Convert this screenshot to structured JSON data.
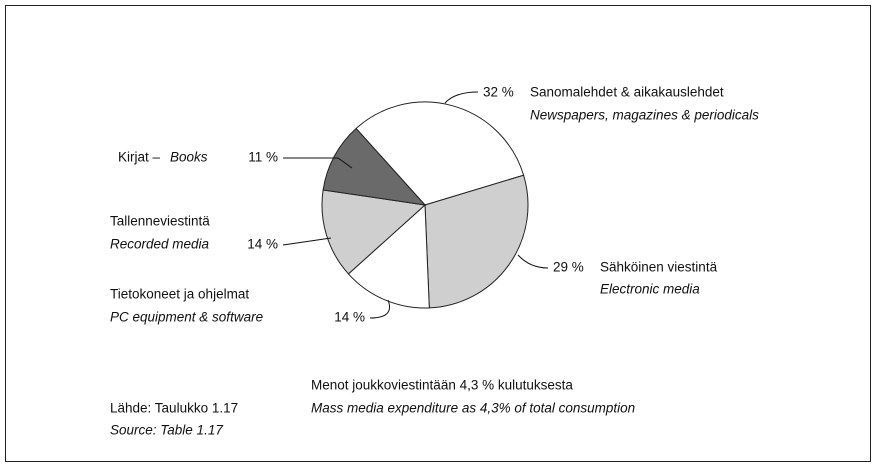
{
  "chart_data": {
    "type": "pie",
    "categories": [
      "Sanomalehdet & aikakauslehdet",
      "Sähköinen viestintä",
      "Tietokoneet ja ohjelmat",
      "Tallenneviestintä",
      "Kirjat –"
    ],
    "categories_en": [
      "Newspapers, magazines & periodicals",
      "Electronic media",
      "PC equipment & software",
      "Recorded media",
      "Books"
    ],
    "values": [
      32,
      29,
      14,
      14,
      11
    ],
    "value_labels": [
      "32 %",
      "29 %",
      "14 %",
      "14 %",
      "11 %"
    ],
    "colors": [
      "#ffffff",
      "#cfcfcf",
      "#ffffff",
      "#cfcfcf",
      "#6a6a6a"
    ],
    "notes": [
      "Menot joukkoviestintään 4,3 % kulutuksesta",
      "Mass media expenditure as 4,3% of total consumption"
    ],
    "source": [
      "Lähde: Taulukko 1.17",
      "Source: Table 1.17"
    ]
  }
}
